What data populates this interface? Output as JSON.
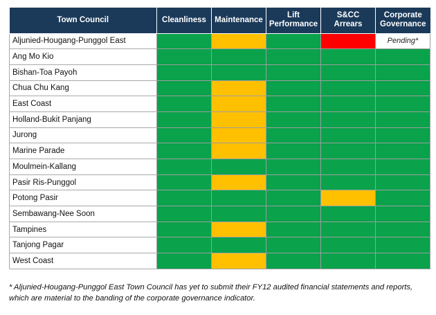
{
  "table": {
    "headers": [
      "Town Council",
      "Cleanliness",
      "Maintenance",
      "Lift Performance",
      "S&CC Arrears",
      "Corporate Governance"
    ],
    "legend_colors": {
      "green": "#0aa24b",
      "amber": "#ffc000",
      "red": "#ff0000",
      "header_bg": "#1b3a5a"
    },
    "rows": [
      {
        "name": "Aljunied-Hougang-Punggol East",
        "bands": [
          "green",
          "amber",
          "green",
          "red",
          "blank"
        ],
        "notes": [
          "",
          "",
          "",
          "",
          "Pending*"
        ]
      },
      {
        "name": "Ang Mo Kio",
        "bands": [
          "green",
          "green",
          "green",
          "green",
          "green"
        ],
        "notes": [
          "",
          "",
          "",
          "",
          ""
        ]
      },
      {
        "name": "Bishan-Toa Payoh",
        "bands": [
          "green",
          "green",
          "green",
          "green",
          "green"
        ],
        "notes": [
          "",
          "",
          "",
          "",
          ""
        ]
      },
      {
        "name": "Chua Chu Kang",
        "bands": [
          "green",
          "amber",
          "green",
          "green",
          "green"
        ],
        "notes": [
          "",
          "",
          "",
          "",
          ""
        ]
      },
      {
        "name": "East Coast",
        "bands": [
          "green",
          "amber",
          "green",
          "green",
          "green"
        ],
        "notes": [
          "",
          "",
          "",
          "",
          ""
        ]
      },
      {
        "name": "Holland-Bukit Panjang",
        "bands": [
          "green",
          "amber",
          "green",
          "green",
          "green"
        ],
        "notes": [
          "",
          "",
          "",
          "",
          ""
        ]
      },
      {
        "name": "Jurong",
        "bands": [
          "green",
          "amber",
          "green",
          "green",
          "green"
        ],
        "notes": [
          "",
          "",
          "",
          "",
          ""
        ]
      },
      {
        "name": "Marine Parade",
        "bands": [
          "green",
          "amber",
          "green",
          "green",
          "green"
        ],
        "notes": [
          "",
          "",
          "",
          "",
          ""
        ]
      },
      {
        "name": "Moulmein-Kallang",
        "bands": [
          "green",
          "green",
          "green",
          "green",
          "green"
        ],
        "notes": [
          "",
          "",
          "",
          "",
          ""
        ]
      },
      {
        "name": "Pasir Ris-Punggol",
        "bands": [
          "green",
          "amber",
          "green",
          "green",
          "green"
        ],
        "notes": [
          "",
          "",
          "",
          "",
          ""
        ]
      },
      {
        "name": "Potong Pasir",
        "bands": [
          "green",
          "green",
          "green",
          "amber",
          "green"
        ],
        "notes": [
          "",
          "",
          "",
          "",
          ""
        ]
      },
      {
        "name": "Sembawang-Nee Soon",
        "bands": [
          "green",
          "green",
          "green",
          "green",
          "green"
        ],
        "notes": [
          "",
          "",
          "",
          "",
          ""
        ]
      },
      {
        "name": "Tampines",
        "bands": [
          "green",
          "amber",
          "green",
          "green",
          "green"
        ],
        "notes": [
          "",
          "",
          "",
          "",
          ""
        ]
      },
      {
        "name": "Tanjong Pagar",
        "bands": [
          "green",
          "green",
          "green",
          "green",
          "green"
        ],
        "notes": [
          "",
          "",
          "",
          "",
          ""
        ]
      },
      {
        "name": "West Coast",
        "bands": [
          "green",
          "amber",
          "green",
          "green",
          "green"
        ],
        "notes": [
          "",
          "",
          "",
          "",
          ""
        ]
      }
    ]
  },
  "footnote": {
    "line1": "* Aljunied-Hougang-Punggol East Town Council has yet to submit their FY12 audited financial statements and reports,",
    "line2": "which are material to the banding of the corporate governance indicator."
  }
}
